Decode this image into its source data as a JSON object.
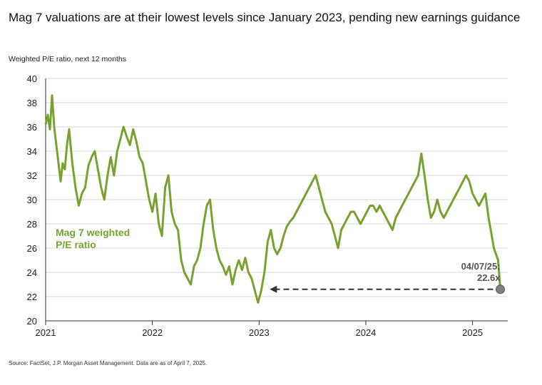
{
  "title": "Mag 7 valuations are at their lowest levels since January 2023, pending new earnings guidance",
  "subtitle": "Weighted P/E ratio, next 12 months",
  "source": "Source: FactSet, J.P. Morgan Asset Management. Data are as of April 7, 2025.",
  "colors": {
    "line": "#78a22f",
    "grid": "#d9d9d9",
    "axis": "#333333",
    "marker": "#808080",
    "arrow": "#333333"
  },
  "chart_data": {
    "type": "line",
    "ylim": [
      20,
      40
    ],
    "yticks": [
      20,
      22,
      24,
      26,
      28,
      30,
      32,
      34,
      36,
      38,
      40
    ],
    "xlim": [
      2021.0,
      2025.33
    ],
    "xticks": [
      2021,
      2022,
      2023,
      2024,
      2025
    ],
    "grid": "horizontal",
    "series": [
      {
        "name": "Mag 7 weighted P/E ratio",
        "x": [
          2021.0,
          2021.02,
          2021.04,
          2021.06,
          2021.08,
          2021.1,
          2021.12,
          2021.14,
          2021.16,
          2021.18,
          2021.2,
          2021.22,
          2021.25,
          2021.28,
          2021.31,
          2021.34,
          2021.37,
          2021.4,
          2021.43,
          2021.46,
          2021.49,
          2021.52,
          2021.55,
          2021.58,
          2021.61,
          2021.64,
          2021.67,
          2021.7,
          2021.73,
          2021.76,
          2021.79,
          2021.82,
          2021.85,
          2021.88,
          2021.91,
          2021.94,
          2021.97,
          2022.0,
          2022.03,
          2022.06,
          2022.09,
          2022.12,
          2022.15,
          2022.18,
          2022.21,
          2022.24,
          2022.27,
          2022.3,
          2022.33,
          2022.36,
          2022.39,
          2022.42,
          2022.45,
          2022.48,
          2022.51,
          2022.54,
          2022.57,
          2022.6,
          2022.63,
          2022.66,
          2022.69,
          2022.72,
          2022.75,
          2022.78,
          2022.81,
          2022.84,
          2022.87,
          2022.9,
          2022.93,
          2022.96,
          2022.99,
          2023.02,
          2023.05,
          2023.08,
          2023.11,
          2023.14,
          2023.17,
          2023.2,
          2023.23,
          2023.26,
          2023.29,
          2023.32,
          2023.35,
          2023.38,
          2023.41,
          2023.44,
          2023.47,
          2023.5,
          2023.53,
          2023.56,
          2023.59,
          2023.62,
          2023.65,
          2023.68,
          2023.71,
          2023.74,
          2023.77,
          2023.8,
          2023.83,
          2023.86,
          2023.89,
          2023.92,
          2023.95,
          2023.98,
          2024.01,
          2024.04,
          2024.07,
          2024.1,
          2024.13,
          2024.16,
          2024.19,
          2024.22,
          2024.25,
          2024.28,
          2024.31,
          2024.34,
          2024.37,
          2024.4,
          2024.43,
          2024.46,
          2024.49,
          2024.52,
          2024.55,
          2024.58,
          2024.61,
          2024.64,
          2024.67,
          2024.7,
          2024.73,
          2024.76,
          2024.79,
          2024.82,
          2024.85,
          2024.88,
          2024.91,
          2024.94,
          2024.97,
          2025.0,
          2025.03,
          2025.06,
          2025.09,
          2025.12,
          2025.15,
          2025.18,
          2025.2,
          2025.22,
          2025.24,
          2025.26
        ],
        "values": [
          36.2,
          37.0,
          35.8,
          38.6,
          36.0,
          34.5,
          33.0,
          31.5,
          33.0,
          32.5,
          34.5,
          35.8,
          33.0,
          31.0,
          29.5,
          30.5,
          31.0,
          32.8,
          33.5,
          34.0,
          32.5,
          31.0,
          30.0,
          32.0,
          33.5,
          32.0,
          34.0,
          35.0,
          36.0,
          35.2,
          34.5,
          35.8,
          34.8,
          33.5,
          33.0,
          31.5,
          30.0,
          29.0,
          30.5,
          28.0,
          27.0,
          31.0,
          32.0,
          29.0,
          28.0,
          27.5,
          25.0,
          24.0,
          23.5,
          23.0,
          24.5,
          25.0,
          26.0,
          28.0,
          29.5,
          30.0,
          27.5,
          26.0,
          25.0,
          24.5,
          23.8,
          24.5,
          23.0,
          24.2,
          25.0,
          24.2,
          25.2,
          24.0,
          23.5,
          22.5,
          21.5,
          22.5,
          24.0,
          26.5,
          27.5,
          26.0,
          25.5,
          26.0,
          27.0,
          27.8,
          28.2,
          28.5,
          29.0,
          29.5,
          30.0,
          30.5,
          31.0,
          31.5,
          32.0,
          31.0,
          30.0,
          29.0,
          28.5,
          28.0,
          27.0,
          26.0,
          27.5,
          28.0,
          28.5,
          29.0,
          29.0,
          28.5,
          28.0,
          28.5,
          29.0,
          29.5,
          29.5,
          29.0,
          29.5,
          29.0,
          28.5,
          28.0,
          27.5,
          28.5,
          29.0,
          29.5,
          30.0,
          30.5,
          31.0,
          31.5,
          32.0,
          33.8,
          32.0,
          30.0,
          28.5,
          29.0,
          30.0,
          29.0,
          28.5,
          29.0,
          29.5,
          30.0,
          30.5,
          31.0,
          31.5,
          32.0,
          31.5,
          30.5,
          30.0,
          29.5,
          30.0,
          30.5,
          28.5,
          27.0,
          26.0,
          25.5,
          25.0,
          22.6
        ]
      }
    ],
    "series_label": [
      "Mag 7 weighted",
      "P/E ratio"
    ],
    "annotation": {
      "date_label": "04/07/25:",
      "value_label": "22.6x",
      "x": 2025.26,
      "y": 22.6,
      "arrow_to_x": 2023.1
    }
  }
}
